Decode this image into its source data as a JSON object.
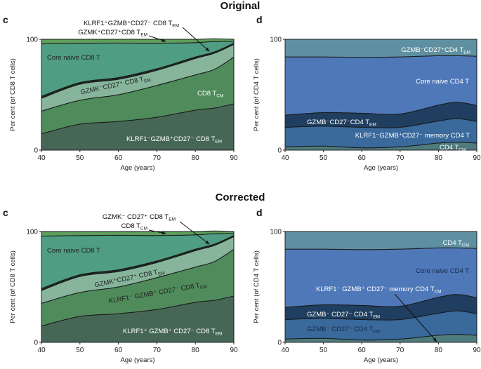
{
  "colors": {
    "c_layers": [
      "#466756",
      "#4f8b5b",
      "#86b59b",
      "#1e2b24",
      "#4f9d82",
      "#5d9e5b"
    ],
    "d_layers": [
      "#4f7b7d",
      "#3a699c",
      "#1f3e60",
      "#4f78b9",
      "#5f90a1"
    ]
  },
  "sections": [
    {
      "title": "Original"
    },
    {
      "title": "Corrected"
    }
  ],
  "chart_data": [
    {
      "panel": "c",
      "section": "Original",
      "type": "area",
      "stacked": true,
      "xlabel": "Age (years)",
      "ylabel": "Per cent (of CD8 T cells)",
      "xlim": [
        40,
        90
      ],
      "ylim": [
        0,
        100
      ],
      "xticks": [
        "40",
        "50",
        "60",
        "70",
        "80",
        "90"
      ],
      "yticks": [
        "0",
        "100"
      ],
      "x": [
        40,
        50,
        60,
        70,
        80,
        85,
        90
      ],
      "series": [
        {
          "name": "KLRF1⁻GZMB⁺CD27⁻ CD8 T",
          "sub": "EM",
          "values": [
            14.7,
            23.4,
            25.9,
            29.7,
            36.1,
            38,
            41.8
          ]
        },
        {
          "name": "CD8 T",
          "sub": "CM",
          "values": [
            20.5,
            21.6,
            24.1,
            28.7,
            31.8,
            35,
            42.2
          ]
        },
        {
          "name": "GZMK⁻CD27⁺ CD8 T",
          "sub": "EM",
          "values": [
            11.6,
            14.5,
            13.9,
            13.6,
            14.8,
            14.5,
            11.4
          ]
        },
        {
          "name": "KLRF1⁺GZMB⁺CD27⁻ CD8 T",
          "sub": "EM",
          "values": [
            1.7,
            1.5,
            1.6,
            1.5,
            1.3,
            1.2,
            1.1
          ]
        },
        {
          "name": "Core naive CD8 T",
          "sub": "",
          "values": [
            47.3,
            35.4,
            31.1,
            22.9,
            13,
            9.3,
            1.6
          ]
        },
        {
          "name": "GZMK⁺CD27⁺CD8 T",
          "sub": "EM",
          "values": [
            4.2,
            3.6,
            3.4,
            3.6,
            3,
            2.5,
            1.9
          ]
        }
      ]
    },
    {
      "panel": "d",
      "section": "Original",
      "type": "area",
      "stacked": true,
      "xlabel": "Age (years)",
      "ylabel": "Per cent (of CD4 T cells)",
      "xlim": [
        40,
        90
      ],
      "ylim": [
        0,
        100
      ],
      "xticks": [
        "40",
        "50",
        "60",
        "70",
        "80",
        "90"
      ],
      "yticks": [
        "0",
        "100"
      ],
      "x": [
        40,
        50,
        60,
        70,
        80,
        85,
        90
      ],
      "series": [
        {
          "name": "CD4 T",
          "sub": "CM",
          "values": [
            3,
            3.6,
            2.1,
            3,
            6.4,
            7.2,
            6.4
          ]
        },
        {
          "name": "KLRF1⁻GZMB⁺CD27⁻ memory CD4 T",
          "sub": "",
          "values": [
            17.6,
            18,
            18.5,
            17.6,
            19.9,
            21.2,
            19.4
          ]
        },
        {
          "name": "GZMB⁻CD27⁻CD4 T",
          "sub": "EM",
          "values": [
            11,
            12.3,
            12.7,
            12,
            14.4,
            14.8,
            14.5
          ]
        },
        {
          "name": "Core naive CD4 T",
          "sub": "",
          "values": [
            52.5,
            50.2,
            50.4,
            51.5,
            44.5,
            42,
            44.4
          ]
        },
        {
          "name": "GZMB⁻CD27⁺CD4 T",
          "sub": "EM",
          "values": [
            15.9,
            15.9,
            16.3,
            15.9,
            14.8,
            14.8,
            15.3
          ]
        }
      ]
    },
    {
      "panel": "c",
      "section": "Corrected",
      "type": "area",
      "stacked": true,
      "xlabel": "Age (years)",
      "ylabel": "Per cent (of CD8 T cells)",
      "xlim": [
        40,
        90
      ],
      "ylim": [
        0,
        100
      ],
      "xticks": [
        "40",
        "50",
        "60",
        "70",
        "80",
        "90"
      ],
      "yticks": [
        "0",
        "100"
      ],
      "x": [
        40,
        50,
        60,
        70,
        80,
        85,
        90
      ],
      "series": [
        {
          "name": "KLRF1⁺ GZMB⁺ CD27⁻ CD8 T",
          "sub": "EM",
          "values": [
            14.7,
            23.4,
            25.9,
            29.7,
            36.1,
            38,
            41.8
          ]
        },
        {
          "name": "KLRF1⁻ GZMB⁺ CD27⁻ CD8 T",
          "sub": "EM",
          "values": [
            20.5,
            21.6,
            24.1,
            28.7,
            31.8,
            35,
            42.2
          ]
        },
        {
          "name": "GZMK⁺CD27⁺ CD8 T",
          "sub": "EM",
          "values": [
            11.6,
            14.5,
            13.9,
            13.6,
            14.8,
            14.5,
            11.4
          ]
        },
        {
          "name": "GZMK⁻ CD27⁺ CD8 T",
          "sub": "EM",
          "values": [
            1.7,
            1.5,
            1.6,
            1.5,
            1.3,
            1.2,
            1.1
          ]
        },
        {
          "name": "Core naive CD8 T",
          "sub": "",
          "values": [
            47.3,
            35.4,
            31.1,
            22.9,
            13,
            9.3,
            1.6
          ]
        },
        {
          "name": "CD8 T",
          "sub": "CM",
          "values": [
            4.2,
            3.6,
            3.4,
            3.6,
            3,
            2.5,
            1.9
          ]
        }
      ]
    },
    {
      "panel": "d",
      "section": "Corrected",
      "type": "area",
      "stacked": true,
      "xlabel": "Age (years)",
      "ylabel": "Per cent (of CD4 T cells)",
      "xlim": [
        40,
        90
      ],
      "ylim": [
        0,
        100
      ],
      "xticks": [
        "40",
        "50",
        "60",
        "70",
        "80",
        "90"
      ],
      "yticks": [
        "0",
        "100"
      ],
      "x": [
        40,
        50,
        60,
        70,
        80,
        85,
        90
      ],
      "series": [
        {
          "name": "KLRF1⁻ GZMB⁺ CD27⁻ memory CD4 T",
          "sub": "CM",
          "values": [
            3,
            3.6,
            2.1,
            3,
            6.4,
            7.2,
            6.4
          ]
        },
        {
          "name": "GZMB⁻ CD27⁺ CD4 T",
          "sub": "EM",
          "values": [
            17.6,
            18,
            18.5,
            17.6,
            19.9,
            21.2,
            19.4
          ]
        },
        {
          "name": "GZMB⁻ CD27⁻ CD4 T",
          "sub": "EM",
          "values": [
            11,
            12.3,
            12.7,
            12,
            14.4,
            14.8,
            14.5
          ]
        },
        {
          "name": "Core naive CD4 T",
          "sub": "",
          "values": [
            52.5,
            50.2,
            50.4,
            51.5,
            44.5,
            42,
            44.4
          ]
        },
        {
          "name": "CD4 T",
          "sub": "CM",
          "values": [
            15.9,
            15.9,
            16.3,
            15.9,
            14.8,
            14.8,
            15.3
          ]
        }
      ]
    }
  ]
}
